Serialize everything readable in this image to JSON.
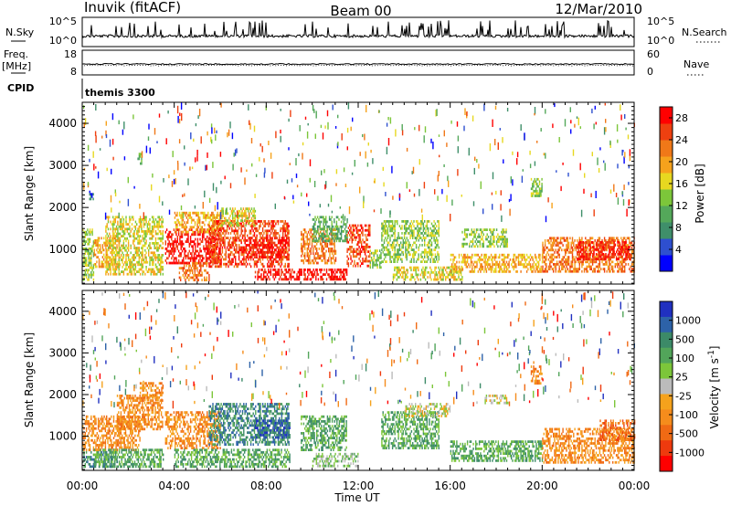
{
  "header": {
    "station": "Inuvik (fitACF)",
    "beam": "Beam 00",
    "date": "12/Mar/2010"
  },
  "panels": {
    "nsky": {
      "left_label": "N.Sky",
      "left_ticks": [
        "10^5",
        "10^0"
      ],
      "right_label": "N.Search",
      "right_ticks": [
        "10^5",
        "10^0"
      ]
    },
    "freq": {
      "left_label_1": "Freq.",
      "left_label_2": "[MHz]",
      "left_ticks": [
        "18",
        "8"
      ],
      "right_label": "Nave",
      "right_ticks": [
        "60",
        "0"
      ]
    },
    "cpid": {
      "label": "CPID",
      "value": "themis 3300"
    }
  },
  "colors": {
    "power_scale": [
      "#0000ff",
      "#2e4fcf",
      "#3f8f6a",
      "#54a85a",
      "#7cc63a",
      "#e7d820",
      "#f6a21c",
      "#f07818",
      "#ee4010",
      "#ff0000"
    ],
    "velocity_scale": [
      "#2030c0",
      "#2d62a8",
      "#3c8a68",
      "#52a55a",
      "#7cc63a",
      "#bbbbbb",
      "#f5a21c",
      "#f58c1c",
      "#f06a14",
      "#ee3a0e",
      "#ff0000"
    ]
  },
  "chart_data": [
    {
      "type": "heatmap",
      "title": "Power",
      "xlabel": "Time UT",
      "ylabel": "Slant Range [km]",
      "x_ticks": [
        "00:00",
        "04:00",
        "08:00",
        "12:00",
        "16:00",
        "20:00",
        "00:00"
      ],
      "xlim_hours": [
        0,
        24
      ],
      "y_ticks": [
        1000,
        2000,
        3000,
        4000
      ],
      "ylim": [
        180,
        4500
      ],
      "colorbar": {
        "label": "Power [dB]",
        "range": [
          0,
          30
        ],
        "ticks": [
          4,
          8,
          12,
          16,
          20,
          24,
          28
        ]
      },
      "regions": [
        {
          "t": [
            0.0,
            0.5
          ],
          "r": [
            300,
            1500
          ],
          "level": 4
        },
        {
          "t": [
            0.3,
            0.5
          ],
          "r": [
            2200,
            2400
          ],
          "level": 1
        },
        {
          "t": [
            0.5,
            1.6
          ],
          "r": [
            600,
            1300
          ],
          "level": 6
        },
        {
          "t": [
            1.0,
            3.5
          ],
          "r": [
            400,
            1800
          ],
          "level": 5
        },
        {
          "t": [
            2.4,
            2.6
          ],
          "r": [
            3000,
            3300
          ],
          "level": 3
        },
        {
          "t": [
            3.6,
            6.0
          ],
          "r": [
            700,
            1500
          ],
          "level": 9
        },
        {
          "t": [
            4.0,
            6.0
          ],
          "r": [
            1400,
            1900
          ],
          "level": 6
        },
        {
          "t": [
            4.2,
            5.5
          ],
          "r": [
            300,
            700
          ],
          "level": 7
        },
        {
          "t": [
            5.5,
            9.0
          ],
          "r": [
            600,
            1700
          ],
          "level": 8
        },
        {
          "t": [
            6.0,
            7.5
          ],
          "r": [
            1600,
            2000
          ],
          "level": 5
        },
        {
          "t": [
            7.0,
            9.0
          ],
          "r": [
            800,
            1300
          ],
          "level": 9
        },
        {
          "t": [
            7.5,
            11.5
          ],
          "r": [
            300,
            550
          ],
          "level": 9
        },
        {
          "t": [
            9.5,
            11.0
          ],
          "r": [
            700,
            1500
          ],
          "level": 7
        },
        {
          "t": [
            10.0,
            11.5
          ],
          "r": [
            1200,
            1800
          ],
          "level": 3
        },
        {
          "t": [
            11.5,
            12.5
          ],
          "r": [
            600,
            1600
          ],
          "level": 8
        },
        {
          "t": [
            12.5,
            13.0
          ],
          "r": [
            600,
            1000
          ],
          "level": 4
        },
        {
          "t": [
            13.0,
            15.5
          ],
          "r": [
            700,
            1700
          ],
          "level": 4
        },
        {
          "t": [
            13.5,
            16.5
          ],
          "r": [
            300,
            600
          ],
          "level": 5
        },
        {
          "t": [
            16.0,
            20.0
          ],
          "r": [
            450,
            900
          ],
          "level": 6
        },
        {
          "t": [
            16.5,
            18.5
          ],
          "r": [
            1100,
            1500
          ],
          "level": 4
        },
        {
          "t": [
            20.0,
            24.0
          ],
          "r": [
            500,
            1300
          ],
          "level": 7
        },
        {
          "t": [
            21.5,
            23.8
          ],
          "r": [
            800,
            1200
          ],
          "level": 9
        },
        {
          "t": [
            19.5,
            20.0
          ],
          "r": [
            2300,
            2700
          ],
          "level": 4
        }
      ]
    },
    {
      "type": "heatmap",
      "title": "Velocity",
      "xlabel": "Time UT",
      "ylabel": "Slant Range [km]",
      "x_ticks": [
        "00:00",
        "04:00",
        "08:00",
        "12:00",
        "16:00",
        "20:00",
        "00:00"
      ],
      "xlim_hours": [
        0,
        24
      ],
      "y_ticks": [
        1000,
        2000,
        3000,
        4000
      ],
      "ylim": [
        180,
        4500
      ],
      "colorbar": {
        "label": "Velocity [m s^-1]",
        "tick_labels": [
          "1000",
          "500",
          "100",
          "25",
          "-25",
          "-100",
          "-500",
          "-1000"
        ]
      },
      "regions": [
        {
          "t": [
            0.0,
            1.5
          ],
          "r": [
            300,
            700
          ],
          "level": 2
        },
        {
          "t": [
            0.0,
            2.5
          ],
          "r": [
            700,
            1500
          ],
          "level": 7
        },
        {
          "t": [
            1.5,
            3.5
          ],
          "r": [
            1200,
            2000
          ],
          "level": 7
        },
        {
          "t": [
            2.5,
            3.5
          ],
          "r": [
            1900,
            2300
          ],
          "level": 7
        },
        {
          "t": [
            0.5,
            3.5
          ],
          "r": [
            300,
            700
          ],
          "level": 3
        },
        {
          "t": [
            3.6,
            6.0
          ],
          "r": [
            700,
            1600
          ],
          "level": 7
        },
        {
          "t": [
            4.0,
            6.0
          ],
          "r": [
            300,
            700
          ],
          "level": 3
        },
        {
          "t": [
            5.5,
            9.0
          ],
          "r": [
            800,
            1800
          ],
          "level": 2
        },
        {
          "t": [
            6.0,
            9.0
          ],
          "r": [
            300,
            700
          ],
          "level": 3
        },
        {
          "t": [
            7.5,
            9.0
          ],
          "r": [
            1000,
            1400
          ],
          "level": 1
        },
        {
          "t": [
            9.5,
            11.5
          ],
          "r": [
            700,
            1500
          ],
          "level": 3
        },
        {
          "t": [
            10.0,
            12.0
          ],
          "r": [
            300,
            600
          ],
          "level": 4
        },
        {
          "t": [
            13.0,
            15.5
          ],
          "r": [
            700,
            1600
          ],
          "level": 3
        },
        {
          "t": [
            14.0,
            16.0
          ],
          "r": [
            1500,
            1800
          ],
          "level": 5
        },
        {
          "t": [
            16.0,
            20.0
          ],
          "r": [
            400,
            900
          ],
          "level": 3
        },
        {
          "t": [
            17.5,
            18.5
          ],
          "r": [
            1800,
            2000
          ],
          "level": 5
        },
        {
          "t": [
            20.0,
            24.0
          ],
          "r": [
            400,
            1200
          ],
          "level": 7
        },
        {
          "t": [
            22.5,
            24.0
          ],
          "r": [
            900,
            1400
          ],
          "level": 8
        },
        {
          "t": [
            19.5,
            20.0
          ],
          "r": [
            2300,
            2700
          ],
          "level": 7
        }
      ]
    }
  ]
}
